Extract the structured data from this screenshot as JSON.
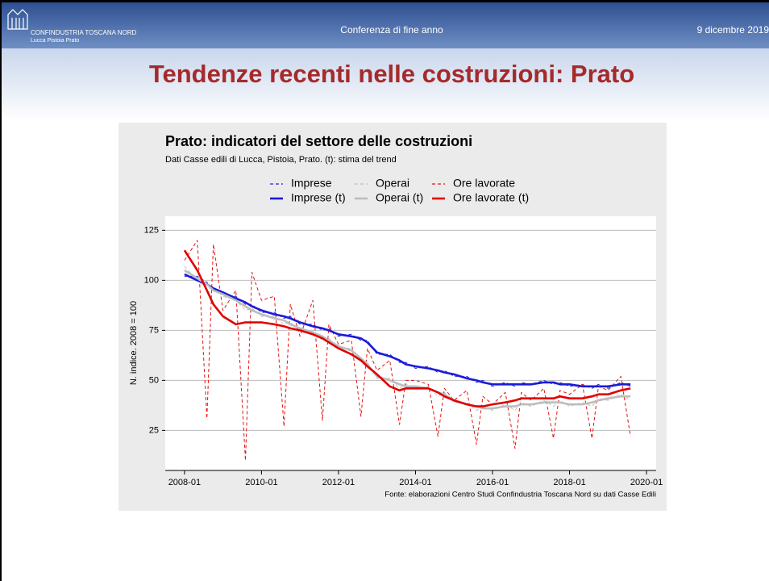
{
  "header": {
    "logo_line1": "CONFINDUSTRIA TOSCANA NORD",
    "logo_line2": "Lucca Pistoia Prato",
    "event": "Conferenza di fine anno",
    "date": "9 dicembre 2019"
  },
  "slide_title": "Tendenze recenti nelle costruzioni: Prato",
  "chart_data": {
    "type": "line",
    "title": "Prato: indicatori del settore delle costruzioni",
    "subtitle": "Dati Casse edili di Lucca, Pistoia, Prato. (t): stima del trend",
    "y_label": "N. indice. 2008 = 100",
    "source": "Fonte: elaborazioni Centro Studi Confindustria Toscana Nord su dati Casse Edili",
    "x": [
      "2008-01",
      "2008-05",
      "2008-08",
      "2008-10",
      "2009-01",
      "2009-05",
      "2009-08",
      "2009-10",
      "2010-01",
      "2010-05",
      "2010-08",
      "2010-10",
      "2011-01",
      "2011-05",
      "2011-08",
      "2011-10",
      "2012-01",
      "2012-05",
      "2012-08",
      "2012-10",
      "2013-01",
      "2013-05",
      "2013-08",
      "2013-10",
      "2014-01",
      "2014-05",
      "2014-08",
      "2014-10",
      "2015-01",
      "2015-05",
      "2015-08",
      "2015-10",
      "2016-01",
      "2016-05",
      "2016-08",
      "2016-10",
      "2017-01",
      "2017-05",
      "2017-08",
      "2017-10",
      "2018-01",
      "2018-05",
      "2018-08",
      "2018-10",
      "2019-01",
      "2019-05",
      "2019-08"
    ],
    "xlim": [
      "2007-07",
      "2020-04"
    ],
    "xticks": [
      "2008-01",
      "2010-01",
      "2012-01",
      "2014-01",
      "2016-01",
      "2018-01",
      "2020-01"
    ],
    "ylim": [
      5,
      132
    ],
    "yticks": [
      25,
      50,
      75,
      100,
      125
    ],
    "grid": true,
    "legend": "top",
    "series": [
      {
        "name": "Imprese",
        "color": "#2323e0",
        "dashed": true,
        "values": [
          102,
          102,
          99,
          95,
          93,
          92,
          88,
          88,
          84,
          84,
          81,
          82,
          78,
          78,
          75,
          76,
          72,
          73,
          70,
          70,
          63,
          63,
          59,
          59,
          56,
          57,
          54,
          55,
          52,
          52,
          49,
          50,
          47,
          49,
          47,
          49,
          48,
          50,
          48,
          49,
          47,
          48,
          46,
          48,
          46,
          49,
          47
        ]
      },
      {
        "name": "Operai",
        "color": "#c0c0c0",
        "dashed": true,
        "values": [
          107,
          100,
          96,
          96,
          92,
          90,
          85,
          86,
          82,
          82,
          78,
          79,
          75,
          75,
          70,
          71,
          66,
          66,
          59,
          59,
          51,
          51,
          46,
          48,
          46,
          47,
          42,
          44,
          39,
          39,
          35,
          37,
          35,
          38,
          35,
          39,
          37,
          40,
          37,
          40,
          37,
          39,
          37,
          41,
          40,
          43,
          40
        ]
      },
      {
        "name": "Ore lavorate",
        "color": "#e81010",
        "dashed": true,
        "values": [
          110,
          120,
          31,
          118,
          85,
          95,
          10,
          104,
          90,
          92,
          27,
          88,
          72,
          90,
          30,
          78,
          68,
          70,
          32,
          66,
          55,
          60,
          28,
          50,
          50,
          48,
          22,
          46,
          40,
          45,
          18,
          42,
          38,
          44,
          16,
          44,
          40,
          46,
          21,
          45,
          43,
          48,
          21,
          47,
          45,
          52,
          22
        ]
      },
      {
        "name": "Imprese (t)",
        "color": "#1a1ad8",
        "dashed": false,
        "values": [
          103,
          100,
          98,
          96,
          94,
          91,
          89,
          87,
          85,
          83,
          82,
          81,
          79,
          77,
          76,
          75,
          73,
          72,
          71,
          69,
          64,
          62,
          60,
          58,
          57,
          56,
          55,
          54,
          53,
          51,
          50,
          49,
          48,
          48,
          48,
          48,
          48,
          49,
          49,
          48,
          48,
          47,
          47,
          47,
          47,
          48,
          48
        ]
      },
      {
        "name": "Operai (t)",
        "color": "#bdbdbd",
        "dashed": false,
        "values": [
          105,
          101,
          98,
          95,
          93,
          90,
          87,
          85,
          83,
          81,
          80,
          78,
          76,
          74,
          72,
          70,
          67,
          65,
          61,
          58,
          52,
          50,
          48,
          47,
          47,
          46,
          44,
          43,
          40,
          38,
          37,
          36,
          36,
          37,
          37,
          38,
          38,
          39,
          39,
          39,
          38,
          38,
          39,
          40,
          41,
          42,
          42
        ]
      },
      {
        "name": "Ore lavorate (t)",
        "color": "#e00000",
        "dashed": false,
        "values": [
          115,
          105,
          95,
          88,
          82,
          78,
          79,
          79,
          79,
          78,
          77,
          76,
          75,
          73,
          71,
          69,
          66,
          63,
          60,
          57,
          53,
          47,
          45,
          46,
          46,
          46,
          44,
          42,
          40,
          38,
          37,
          37,
          38,
          39,
          40,
          41,
          41,
          41,
          41,
          42,
          41,
          41,
          42,
          43,
          43,
          45,
          46
        ]
      }
    ]
  }
}
